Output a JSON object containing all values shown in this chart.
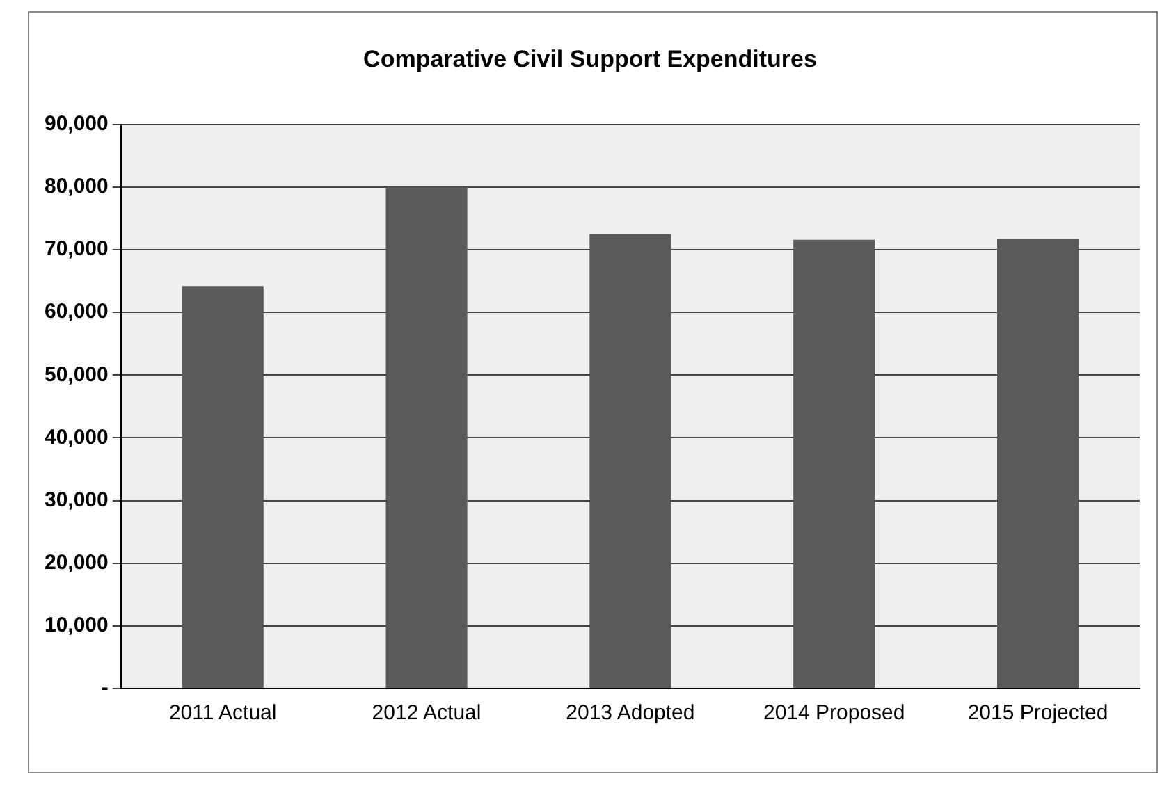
{
  "chart_data": {
    "type": "bar",
    "title": "Comparative Civil Support Expenditures",
    "categories": [
      "2011 Actual",
      "2012 Actual",
      "2013 Adopted",
      "2014 Proposed",
      "2015 Projected"
    ],
    "values": [
      64200,
      80000,
      72500,
      71600,
      71700
    ],
    "color": "#5a5a5a",
    "ylim": [
      0,
      90000
    ],
    "yticks": [
      {
        "value": 0,
        "label": "-"
      },
      {
        "value": 10000,
        "label": "10,000"
      },
      {
        "value": 20000,
        "label": "20,000"
      },
      {
        "value": 30000,
        "label": "30,000"
      },
      {
        "value": 40000,
        "label": "40,000"
      },
      {
        "value": 50000,
        "label": "50,000"
      },
      {
        "value": 60000,
        "label": "60,000"
      },
      {
        "value": 70000,
        "label": "70,000"
      },
      {
        "value": 80000,
        "label": "80,000"
      },
      {
        "value": 90000,
        "label": "90,000"
      }
    ],
    "grid": "y",
    "legend": false
  }
}
